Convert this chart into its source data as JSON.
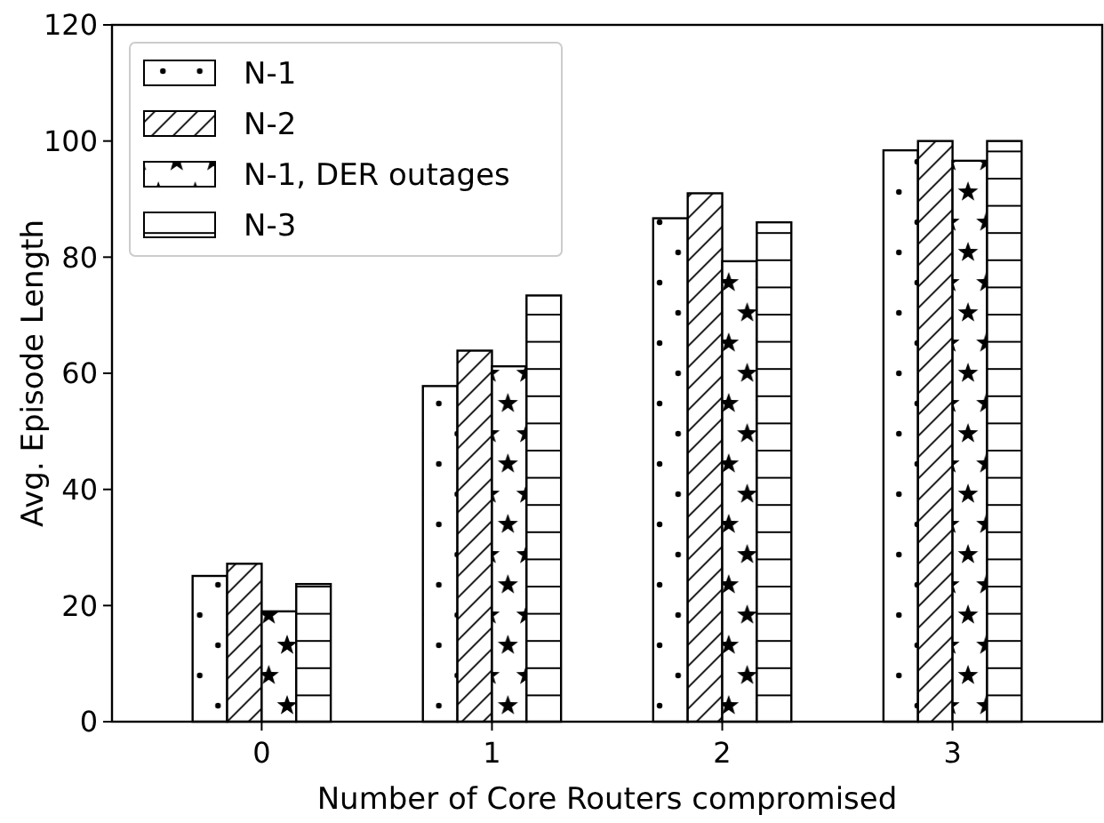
{
  "chart_data": {
    "type": "bar",
    "xlabel": "Number of Core Routers compromised",
    "ylabel": "Avg. Episode Length",
    "categories": [
      "0",
      "1",
      "2",
      "3"
    ],
    "series": [
      {
        "name": "N-1",
        "color": "#000000",
        "values": [
          25.1,
          57.8,
          86.7,
          98.4
        ]
      },
      {
        "name": "N-2",
        "color": "#000000",
        "values": [
          27.2,
          63.9,
          91.0,
          100
        ]
      },
      {
        "name": "N-1, DER outages",
        "color": "#000000",
        "values": [
          19.0,
          61.2,
          79.3,
          96.6
        ]
      },
      {
        "name": "N-3",
        "color": "#000000",
        "values": [
          23.7,
          73.4,
          86.0,
          100
        ]
      }
    ],
    "ylim": [
      0,
      120
    ],
    "yticks": [
      0,
      20,
      40,
      60,
      80,
      100,
      120
    ],
    "grid": false,
    "legend": "top left"
  }
}
